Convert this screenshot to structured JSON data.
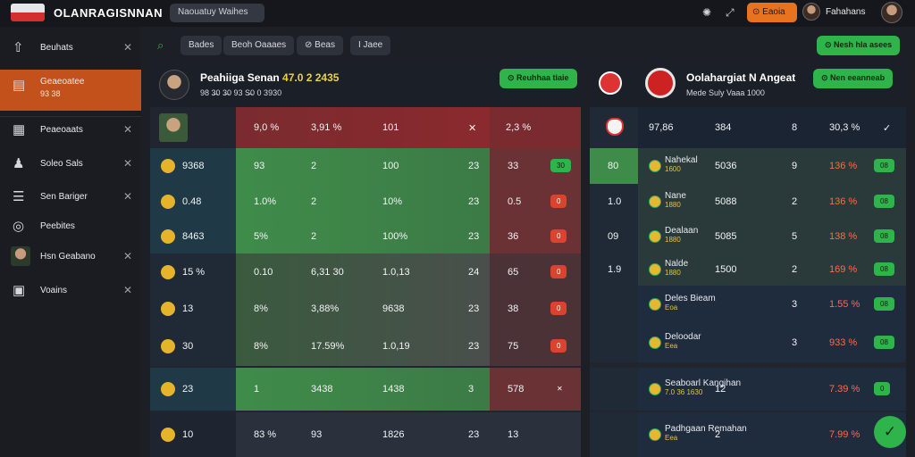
{
  "topbar": {
    "brand": "OLANRAGISNNAN",
    "search": "Naouatuy Waihes",
    "icons": [
      "sun-icon",
      "expand-icon"
    ],
    "cta": "⊙ Eaoia",
    "user": "Fahahans"
  },
  "sidebar": {
    "items": [
      {
        "label": "Beuhats",
        "icon": "upload-icon",
        "closable": true
      },
      {
        "label": "Geaeoatee",
        "sub": "93 38",
        "icon": "basket-icon",
        "active": true
      },
      {
        "label": "Peaeoaats",
        "icon": "calendar-icon",
        "closable": true
      },
      {
        "label": "Soleo Sals",
        "icon": "user-icon",
        "closable": true
      },
      {
        "label": "Sen Bariger",
        "icon": "list-icon",
        "closable": true
      },
      {
        "label": "Peebites",
        "icon": "pin-icon"
      },
      {
        "label": "Hsn Geabano",
        "icon": "avatar",
        "closable": true
      },
      {
        "label": "Voains",
        "icon": "doc-icon",
        "closable": true
      }
    ]
  },
  "filters": {
    "chips": [
      "Bades",
      "Beoh Oaaaes",
      "⊘ Beas",
      "I Jaee"
    ],
    "right_btn": "⊙ Nesh hla asees"
  },
  "left_panel": {
    "title": "Peahiiga Senan",
    "title_accent": "47.0 2 2435",
    "sub": "98 3̶0 3̶0 93 S̶0 0 3930",
    "btn": "⊙ Reuhhaa tiaie",
    "header_row": {
      "c1": "",
      "c2": "9,0 %",
      "c3": "3,91 %",
      "c4": "101",
      "c5": "✕",
      "c6": "2,3 %"
    },
    "rows": [
      {
        "a": "9368",
        "b": "93",
        "c": "2",
        "d": "100",
        "e": "23",
        "f": "33",
        "tag": "30",
        "tagc": "g",
        "color": "green"
      },
      {
        "a": "0.48",
        "b": "1.0%",
        "c": "2",
        "d": "10%",
        "e": "23",
        "f": "0.5",
        "tag": "0",
        "tagc": "r",
        "color": "green"
      },
      {
        "a": "8463",
        "b": "5%",
        "c": "2",
        "d": "100%",
        "e": "23",
        "f": "36",
        "tag": "0",
        "tagc": "r",
        "color": "green"
      },
      {
        "a": "15 %",
        "b": "0.10",
        "c": "6,31 30",
        "d": "1.0,13",
        "e": "24",
        "f": "65",
        "tag": "0",
        "tagc": "r",
        "color": "mix"
      },
      {
        "a": "13",
        "b": "8%",
        "c": "3,88%",
        "d": "9638",
        "e": "23",
        "f": "38",
        "tag": "0",
        "tagc": "r",
        "color": "mix"
      },
      {
        "a": "30",
        "b": "8%",
        "c": "17.59%",
        "d": "1.0,19",
        "e": "23",
        "f": "75",
        "tag": "0",
        "tagc": "r",
        "color": "mix"
      },
      {
        "a": "23",
        "b": "1",
        "c": "3438",
        "d": "1438",
        "e": "3",
        "f": "578",
        "tag": "✕",
        "tagc": "",
        "color": "green"
      },
      {
        "a": "10",
        "b": "83 %",
        "c": "93",
        "d": "1826",
        "e": "23",
        "f": "13",
        "tag": "",
        "tagc": "",
        "color": "plain"
      }
    ]
  },
  "right_panel": {
    "title": "Oolahargiat N Angeat",
    "sub": "Mede Suly Vaaa 1000",
    "btn": "⊙ Nen eeanneab",
    "header_row": {
      "c1": "97,86",
      "c2": "384",
      "c3": "8",
      "c4": "30,3 %",
      "c5": "✓"
    },
    "rows": [
      {
        "n": "80",
        "team": "Nahekal",
        "sub": "1600",
        "v": "5036",
        "g": "9",
        "p": "136 %",
        "tag": "08"
      },
      {
        "n": "1.0",
        "team": "Nane",
        "sub": "1880",
        "v": "5088",
        "g": "2",
        "p": "136 %",
        "tag": "08"
      },
      {
        "n": "09",
        "team": "Dealaan",
        "sub": "1880",
        "v": "5085",
        "g": "5",
        "p": "138 %",
        "tag": "08"
      },
      {
        "n": "1.9",
        "team": "Nalde",
        "sub": "1880",
        "v": "1500",
        "g": "2",
        "p": "169 %",
        "tag": "08"
      },
      {
        "n": "",
        "team": "Deles Bieam",
        "sub": "Eoa",
        "v": "",
        "g": "3",
        "p": "1.55 %",
        "tag": "08"
      },
      {
        "n": "",
        "team": "Deloodar",
        "sub": "Eea",
        "v": "",
        "g": "3",
        "p": "933 %",
        "tag": "08"
      },
      {
        "n": "",
        "team": "Seaboarl Kangihan",
        "sub": "7.0 36 1630",
        "v": "12",
        "g": "",
        "p": "7.39 %",
        "tag": "0"
      },
      {
        "n": "",
        "team": "Padhgaan Remahan",
        "sub": "Eea",
        "v": "2",
        "g": "",
        "p": "7.99 %",
        "tag": ""
      }
    ]
  }
}
